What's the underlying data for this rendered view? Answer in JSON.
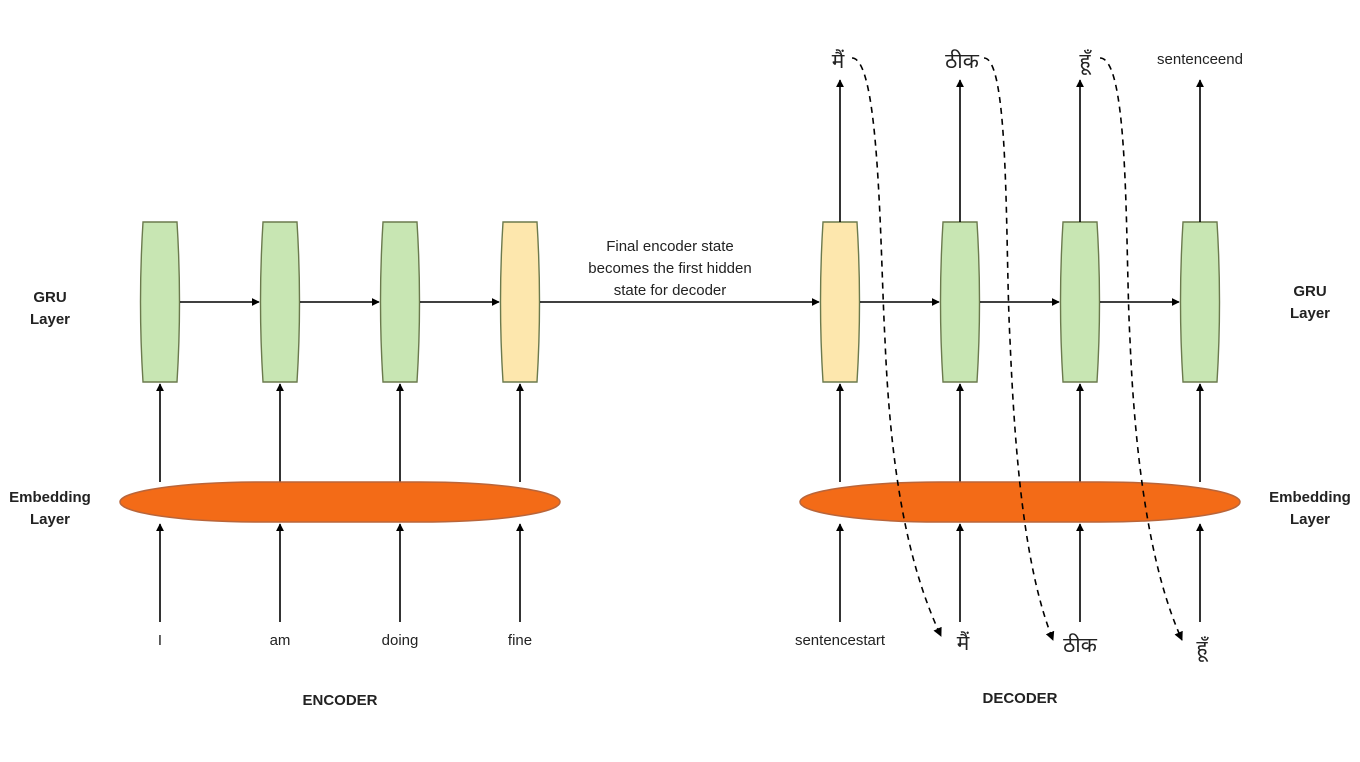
{
  "encoder": {
    "title": "ENCODER",
    "gru_label": [
      "GRU",
      "Layer"
    ],
    "embedding_label": [
      "Embedding",
      "Layer"
    ],
    "inputs": [
      "I",
      "am",
      "doing",
      "fine"
    ]
  },
  "middle": {
    "note_lines": [
      "Final encoder state",
      "becomes the first hidden",
      "state for decoder"
    ]
  },
  "decoder": {
    "title": "DECODER",
    "gru_label": [
      "GRU",
      "Layer"
    ],
    "embedding_label": [
      "Embedding",
      "Layer"
    ],
    "inputs": [
      "sentencestart",
      "मैं",
      "ठीक",
      "हूँ"
    ],
    "outputs": [
      "मैं",
      "ठीक",
      "हूँ",
      "sentenceend"
    ]
  },
  "colors": {
    "gru_green": "#c8e6b3",
    "gru_final": "#fde7ad",
    "gru_stroke": "#6b7a4d",
    "embedding": "#f36b17",
    "embedding_stroke": "#b9653a",
    "arrow": "#000000"
  }
}
